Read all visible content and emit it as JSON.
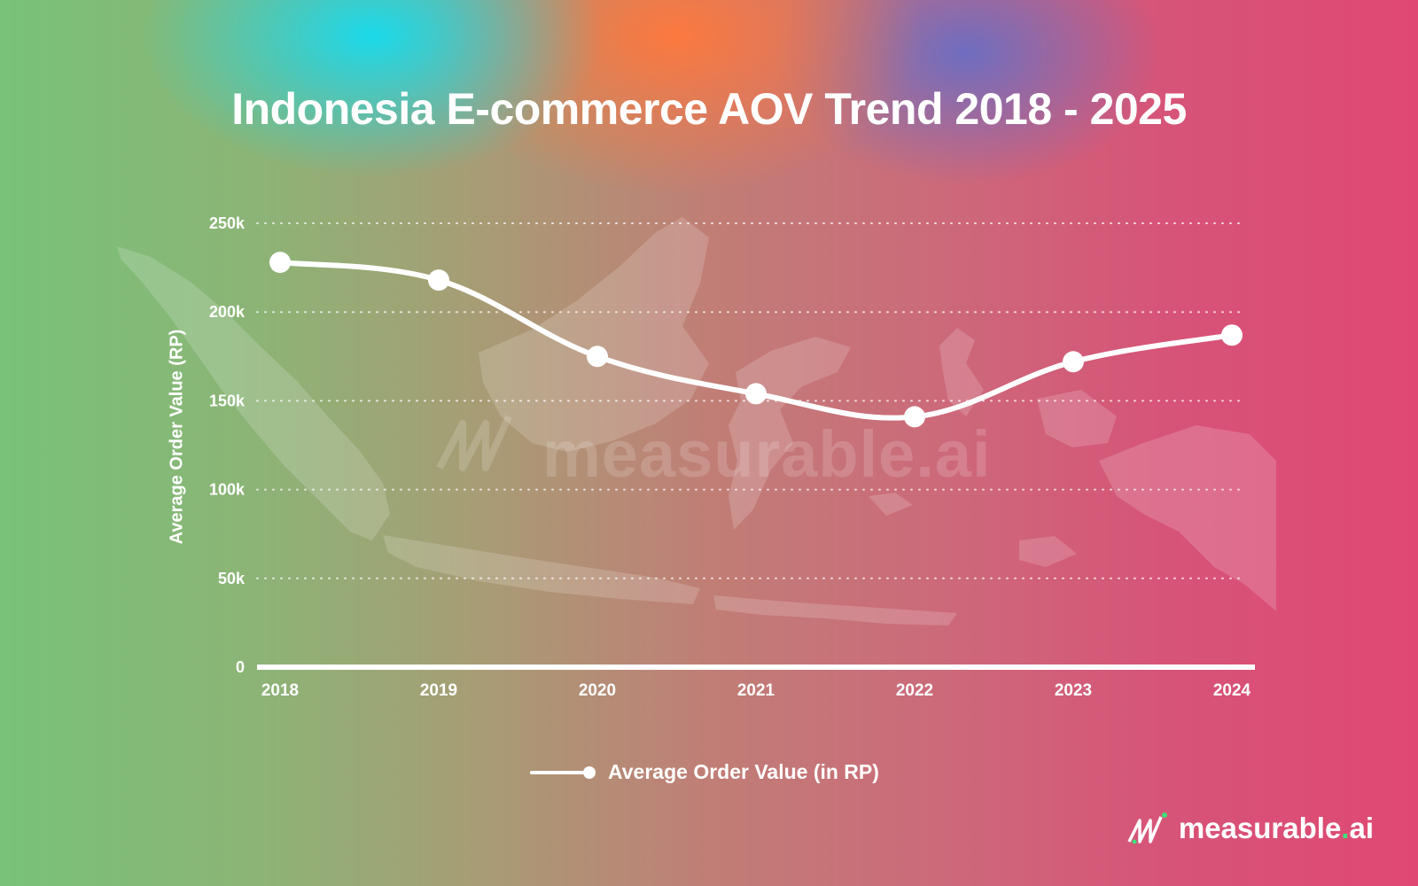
{
  "title": "Indonesia E-commerce AOV Trend 2018 - 2025",
  "watermark_text": "measurable.ai",
  "brand": {
    "name": "measurable",
    "dot": ".",
    "suffix": "ai"
  },
  "chart_data": {
    "type": "line",
    "title": "Indonesia E-commerce AOV Trend 2018 - 2025",
    "xlabel": "",
    "ylabel": "Average Order Value (RP)",
    "categories": [
      "2018",
      "2019",
      "2020",
      "2021",
      "2022",
      "2023",
      "2024"
    ],
    "series": [
      {
        "name": "Average Order Value (in RP)",
        "values": [
          228000,
          218000,
          175000,
          154000,
          141000,
          172000,
          187000
        ]
      }
    ],
    "ylim": [
      0,
      250000
    ],
    "yticks": [
      {
        "value": 0,
        "label": "0"
      },
      {
        "value": 50000,
        "label": "50k"
      },
      {
        "value": 100000,
        "label": "100k"
      },
      {
        "value": 150000,
        "label": "150k"
      },
      {
        "value": 200000,
        "label": "200k"
      },
      {
        "value": 250000,
        "label": "250k"
      }
    ],
    "grid": true,
    "legend": "bottom-center",
    "line_color": "#ffffff"
  }
}
